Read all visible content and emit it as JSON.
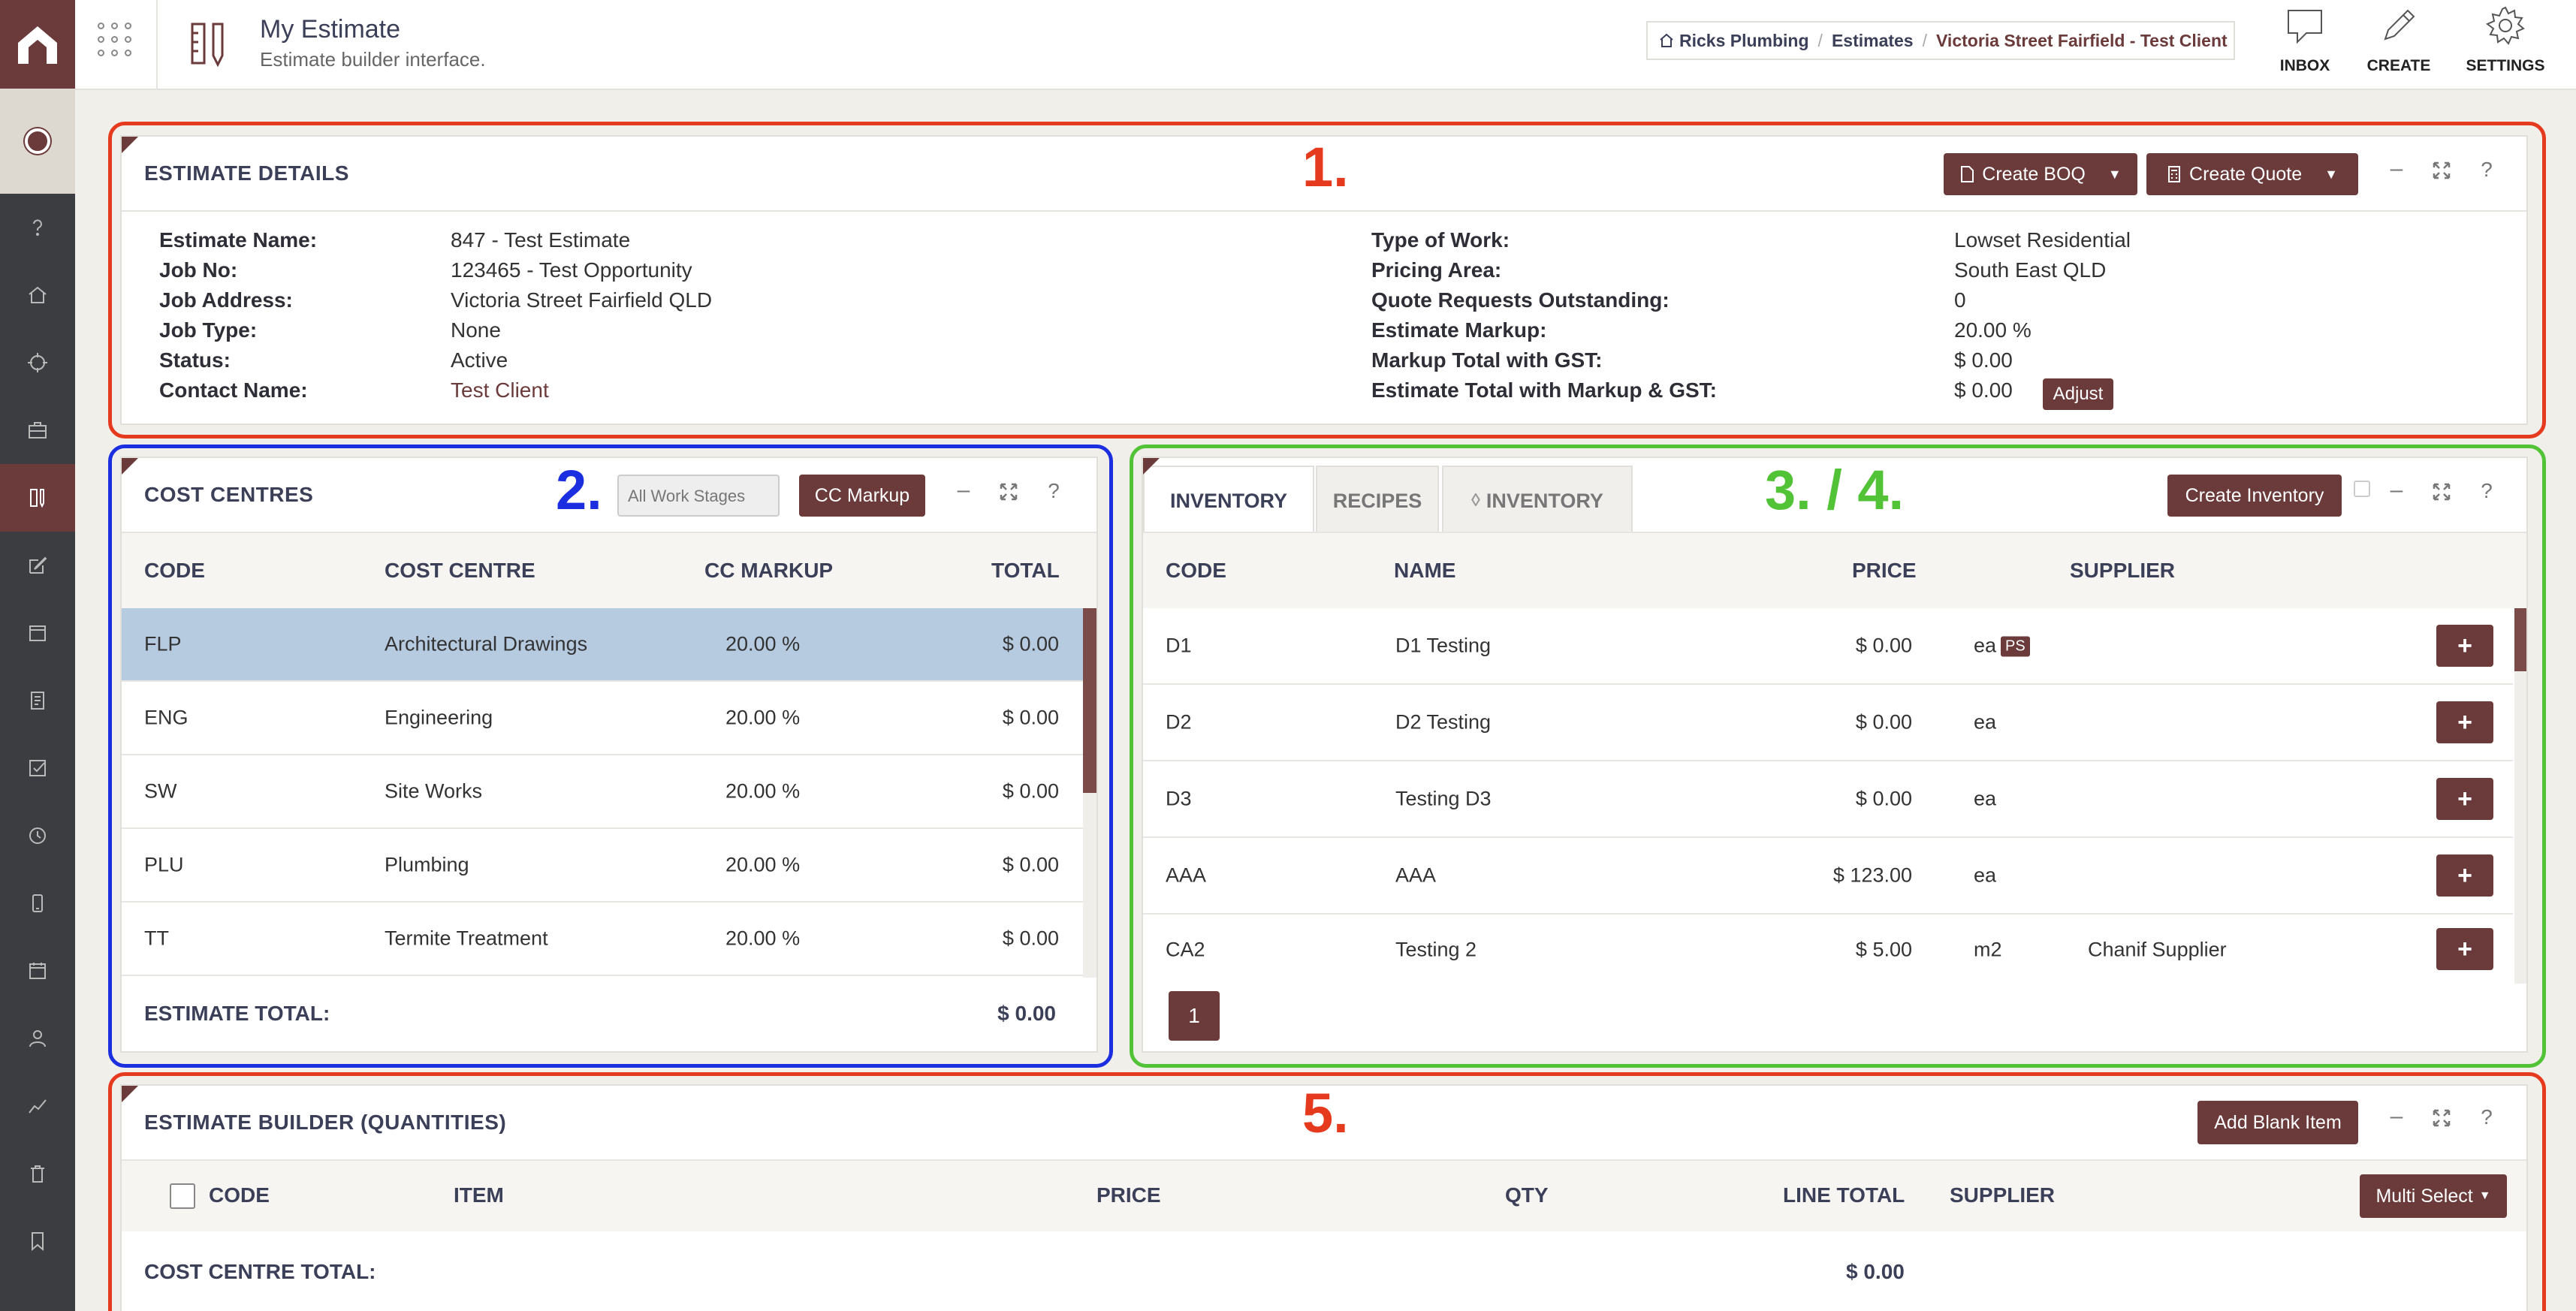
{
  "header": {
    "title": "My Estimate",
    "subtitle": "Estimate builder interface.",
    "breadcrumb": [
      "Ricks Plumbing",
      "Estimates",
      "Victoria Street Fairfield - Test Client"
    ],
    "actions": {
      "inbox": "INBOX",
      "create": "CREATE",
      "settings": "SETTINGS"
    }
  },
  "annotations": {
    "a1": "1.",
    "a2": "2.",
    "a3": "3. / 4.",
    "a5": "5."
  },
  "estimate_details": {
    "title": "ESTIMATE DETAILS",
    "create_boq": "Create BOQ",
    "create_quote": "Create Quote",
    "left": [
      {
        "label": "Estimate Name:",
        "value": "847 - Test Estimate"
      },
      {
        "label": "Job No:",
        "value": "123465 - Test Opportunity"
      },
      {
        "label": "Job Address:",
        "value": "Victoria Street Fairfield QLD"
      },
      {
        "label": "Job Type:",
        "value": "None"
      },
      {
        "label": "Status:",
        "value": "Active"
      },
      {
        "label": "Contact Name:",
        "value": "Test Client"
      }
    ],
    "right": [
      {
        "label": "Type of Work:",
        "value": "Lowset Residential"
      },
      {
        "label": "Pricing Area:",
        "value": "South East QLD"
      },
      {
        "label": "Quote Requests Outstanding:",
        "value": "0"
      },
      {
        "label": "Estimate Markup:",
        "value": "20.00 %"
      },
      {
        "label": "Markup Total with GST:",
        "value": "$ 0.00"
      },
      {
        "label": "Estimate Total with Markup & GST:",
        "value": "$ 0.00"
      }
    ],
    "adjust": "Adjust"
  },
  "cost_centres": {
    "title": "COST CENTRES",
    "stage_select": "All Work Stages",
    "cc_markup": "CC Markup",
    "columns": [
      "CODE",
      "COST CENTRE",
      "CC MARKUP",
      "TOTAL"
    ],
    "rows": [
      {
        "code": "FLP",
        "name": "Architectural Drawings",
        "markup": "20.00 %",
        "total": "$ 0.00"
      },
      {
        "code": "ENG",
        "name": "Engineering",
        "markup": "20.00 %",
        "total": "$ 0.00"
      },
      {
        "code": "SW",
        "name": "Site Works",
        "markup": "20.00 %",
        "total": "$ 0.00"
      },
      {
        "code": "PLU",
        "name": "Plumbing",
        "markup": "20.00 %",
        "total": "$ 0.00"
      },
      {
        "code": "TT",
        "name": "Termite Treatment",
        "markup": "20.00 %",
        "total": "$ 0.00"
      }
    ],
    "total_label": "ESTIMATE TOTAL:",
    "total_value": "$ 0.00"
  },
  "inventory": {
    "tabs": [
      "INVENTORY",
      "RECIPES",
      "INVENTORY"
    ],
    "create_inventory": "Create Inventory",
    "columns": [
      "CODE",
      "NAME",
      "PRICE",
      "SUPPLIER"
    ],
    "rows": [
      {
        "code": "D1",
        "name": "D1 Testing",
        "price": "$ 0.00",
        "unit": "ea",
        "tag": "PS",
        "supplier": ""
      },
      {
        "code": "D2",
        "name": "D2 Testing",
        "price": "$ 0.00",
        "unit": "ea",
        "tag": "",
        "supplier": ""
      },
      {
        "code": "D3",
        "name": "Testing D3",
        "price": "$ 0.00",
        "unit": "ea",
        "tag": "",
        "supplier": ""
      },
      {
        "code": "AAA",
        "name": "AAA",
        "price": "$ 123.00",
        "unit": "ea",
        "tag": "",
        "supplier": ""
      },
      {
        "code": "CA2",
        "name": "Testing 2",
        "price": "$ 5.00",
        "unit": "m2",
        "tag": "",
        "supplier": "Chanif Supplier"
      }
    ],
    "page": "1"
  },
  "builder": {
    "title": "ESTIMATE BUILDER (QUANTITIES)",
    "add_blank": "Add Blank Item",
    "columns": [
      "CODE",
      "ITEM",
      "PRICE",
      "QTY",
      "LINE TOTAL",
      "SUPPLIER"
    ],
    "multi_select": "Multi Select",
    "cc_total_label": "COST CENTRE TOTAL:",
    "cc_total_value": "$ 0.00"
  },
  "colors": {
    "accent": "#6b3a3a",
    "sidebar": "#3b3d40",
    "annot_red": "#e63a1f",
    "annot_blue": "#1c2fe0",
    "annot_green": "#52c236"
  }
}
